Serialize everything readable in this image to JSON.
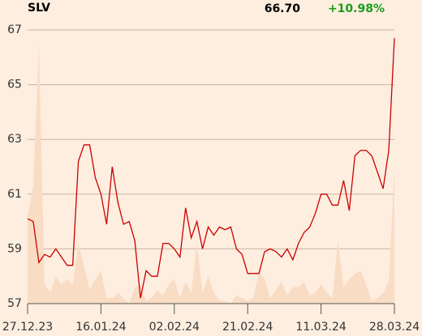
{
  "chart_data": {
    "type": "line",
    "title": "SLV",
    "last_price": "66.70",
    "change": "+10.98%",
    "change_color": "#1a9c1a",
    "categories": [
      "27.12.23",
      null,
      null,
      null,
      null,
      null,
      null,
      null,
      null,
      null,
      null,
      null,
      null,
      "16.01.24",
      null,
      null,
      null,
      null,
      null,
      null,
      null,
      null,
      null,
      null,
      null,
      null,
      "02.02.24",
      null,
      null,
      null,
      null,
      null,
      null,
      null,
      null,
      null,
      null,
      null,
      null,
      "21.02.24",
      null,
      null,
      null,
      null,
      null,
      null,
      null,
      null,
      null,
      null,
      null,
      null,
      "11.03.24",
      null,
      null,
      null,
      null,
      null,
      null,
      null,
      null,
      null,
      null,
      null,
      null,
      "28.03.24"
    ],
    "series": [
      {
        "kind": "area",
        "color": "#f9dcc4",
        "values": [
          60.2,
          61.3,
          66.5,
          57.7,
          57.4,
          58.0,
          57.7,
          57.9,
          57.7,
          59.2,
          58.4,
          57.5,
          57.9,
          58.2,
          57.2,
          57.2,
          57.4,
          57.2,
          57.0,
          57.6,
          57.7,
          57.1,
          57.2,
          57.5,
          57.3,
          57.7,
          57.9,
          57.2,
          57.8,
          57.4,
          59.2,
          57.4,
          58.0,
          57.4,
          57.1,
          57.1,
          57.0,
          57.3,
          57.2,
          57.1,
          57.2,
          58.2,
          57.9,
          57.2,
          57.5,
          57.8,
          57.3,
          57.6,
          57.6,
          57.8,
          57.3,
          57.4,
          57.7,
          57.4,
          57.2,
          59.3,
          57.6,
          57.9,
          58.1,
          58.2,
          57.7,
          57.1,
          57.2,
          57.4,
          57.8,
          61.9
        ]
      },
      {
        "kind": "line",
        "color": "#cc0000",
        "values": [
          60.1,
          60.0,
          58.5,
          58.8,
          58.7,
          59.0,
          58.7,
          58.4,
          58.4,
          62.2,
          62.8,
          62.8,
          61.6,
          61.0,
          59.9,
          62.0,
          60.7,
          59.9,
          60.0,
          59.3,
          57.2,
          58.2,
          58.0,
          58.0,
          59.2,
          59.2,
          59.0,
          58.7,
          60.5,
          59.4,
          60.0,
          59.0,
          59.8,
          59.5,
          59.8,
          59.7,
          59.8,
          59.0,
          58.8,
          58.1,
          58.1,
          58.1,
          58.9,
          59.0,
          58.9,
          58.7,
          59.0,
          58.6,
          59.2,
          59.6,
          59.8,
          60.3,
          61.0,
          61.0,
          60.6,
          60.6,
          61.5,
          60.4,
          62.4,
          62.6,
          62.6,
          62.4,
          61.8,
          61.2,
          62.6,
          66.7
        ]
      }
    ],
    "ylim": [
      57,
      67
    ],
    "yticks": [
      57,
      59,
      61,
      63,
      65,
      67
    ],
    "grid": true,
    "grid_color": "#c9b2a2"
  }
}
